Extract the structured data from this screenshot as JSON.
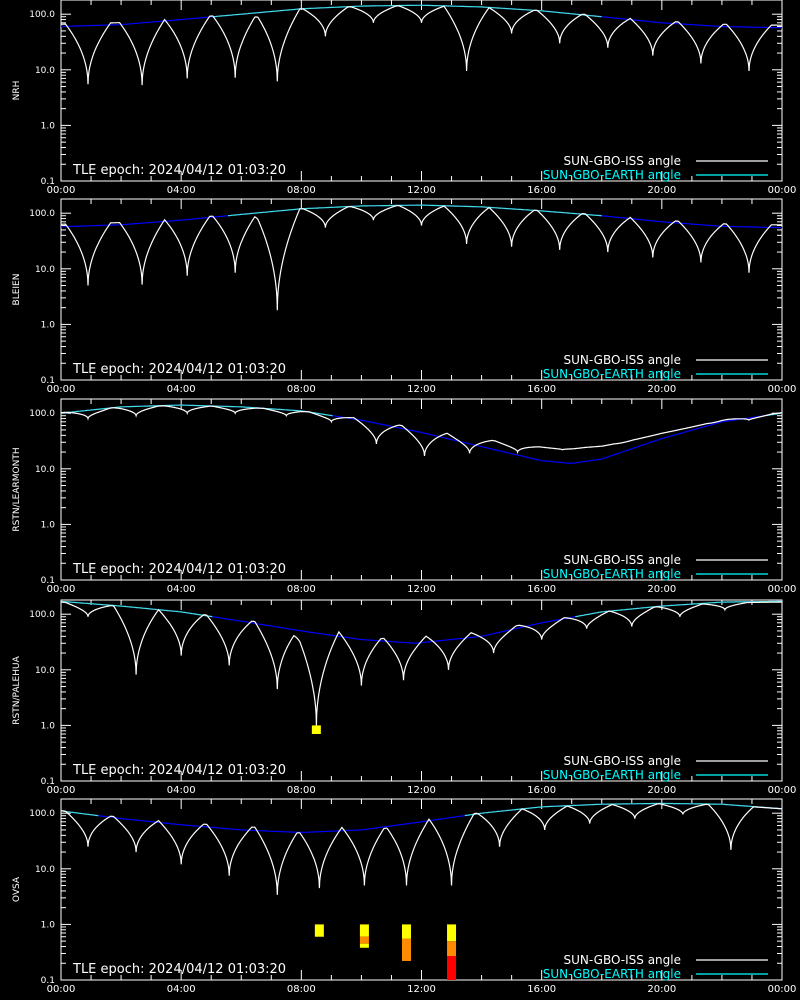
{
  "chart_data": {
    "type": "line",
    "epoch_text": "TLE epoch: 2024/04/12 01:03:20",
    "legend": [
      {
        "name": "SUN-GBO-ISS angle",
        "color": "#ffffff"
      },
      {
        "name": "SUN-GBO-EARTH angle",
        "color": "#00ffff"
      }
    ],
    "x_ticks": [
      "00:00",
      "04:00",
      "08:00",
      "12:00",
      "16:00",
      "20:00",
      "00:00"
    ],
    "x_range_hours": [
      0,
      24
    ],
    "y_scale": "log",
    "y_ticks": [
      "100.0",
      "10.0",
      "1.0",
      "0.1"
    ],
    "y_range": [
      0.1,
      180
    ],
    "earth_day_color": "#40e0d0",
    "earth_night_color": "#0000ff",
    "panels": [
      {
        "station": "NRH",
        "earth": [
          [
            0,
            60
          ],
          [
            2,
            65
          ],
          [
            4,
            80
          ],
          [
            6,
            100
          ],
          [
            8,
            125
          ],
          [
            10,
            140
          ],
          [
            12,
            145
          ],
          [
            14,
            135
          ],
          [
            16,
            115
          ],
          [
            18,
            90
          ],
          [
            20,
            70
          ],
          [
            22,
            60
          ],
          [
            24,
            57
          ]
        ],
        "iss_dips": [
          [
            0.9,
            5.5
          ],
          [
            2.7,
            5.3
          ],
          [
            4.2,
            7
          ],
          [
            5.8,
            7.2
          ],
          [
            7.2,
            6.2
          ],
          [
            8.8,
            40
          ],
          [
            10.4,
            70
          ],
          [
            12.0,
            70
          ],
          [
            13.5,
            9.5
          ],
          [
            15.0,
            45
          ],
          [
            16.6,
            30
          ],
          [
            18.2,
            25
          ],
          [
            19.7,
            18
          ],
          [
            21.3,
            13
          ],
          [
            22.9,
            9.5
          ]
        ],
        "markers": []
      },
      {
        "station": "BLEIEN",
        "earth": [
          [
            0,
            57
          ],
          [
            2,
            62
          ],
          [
            4,
            75
          ],
          [
            6,
            95
          ],
          [
            8,
            120
          ],
          [
            10,
            135
          ],
          [
            12,
            140
          ],
          [
            14,
            130
          ],
          [
            16,
            110
          ],
          [
            18,
            90
          ],
          [
            20,
            70
          ],
          [
            22,
            58
          ],
          [
            24,
            55
          ]
        ],
        "iss_dips": [
          [
            0.9,
            5
          ],
          [
            2.7,
            5.2
          ],
          [
            4.2,
            7.5
          ],
          [
            5.8,
            8.5
          ],
          [
            7.2,
            1.8
          ],
          [
            8.8,
            55
          ],
          [
            10.4,
            75
          ],
          [
            12.0,
            60
          ],
          [
            13.5,
            28
          ],
          [
            15.0,
            25
          ],
          [
            16.6,
            22
          ],
          [
            18.2,
            20
          ],
          [
            19.7,
            16
          ],
          [
            21.3,
            13
          ],
          [
            22.9,
            8.5
          ]
        ],
        "markers": []
      },
      {
        "station": "RSTN/LEARMONTH",
        "earth": [
          [
            0,
            100
          ],
          [
            2,
            130
          ],
          [
            4,
            140
          ],
          [
            6,
            130
          ],
          [
            8,
            110
          ],
          [
            10,
            75
          ],
          [
            12,
            45
          ],
          [
            14,
            25
          ],
          [
            16,
            14
          ],
          [
            17,
            12.5
          ],
          [
            18,
            15
          ],
          [
            20,
            35
          ],
          [
            22,
            70
          ],
          [
            24,
            100
          ]
        ],
        "iss_dips": [
          [
            0.9,
            80
          ],
          [
            2.5,
            90
          ],
          [
            4.2,
            100
          ],
          [
            5.8,
            100
          ],
          [
            7.5,
            90
          ],
          [
            9.0,
            70
          ],
          [
            10.5,
            28
          ],
          [
            12.1,
            17
          ],
          [
            13.6,
            19
          ],
          [
            15.2,
            20
          ],
          [
            16.7,
            22
          ],
          [
            18.3,
            28
          ],
          [
            19.8,
            50
          ],
          [
            21.4,
            65
          ],
          [
            22.9,
            75
          ]
        ],
        "markers": []
      },
      {
        "station": "RSTN/PALEHUA",
        "earth": [
          [
            0,
            170
          ],
          [
            2,
            140
          ],
          [
            4,
            110
          ],
          [
            6,
            75
          ],
          [
            8,
            50
          ],
          [
            10,
            35
          ],
          [
            11.8,
            30
          ],
          [
            14,
            40
          ],
          [
            16,
            70
          ],
          [
            18,
            110
          ],
          [
            20,
            140
          ],
          [
            22,
            165
          ],
          [
            24,
            170
          ]
        ],
        "iss_dips": [
          [
            0.9,
            90
          ],
          [
            2.5,
            8.2
          ],
          [
            4.0,
            18
          ],
          [
            5.6,
            12
          ],
          [
            7.2,
            4.5
          ],
          [
            8.5,
            1.0
          ],
          [
            10.0,
            5.2
          ],
          [
            11.4,
            6.5
          ],
          [
            12.9,
            10
          ],
          [
            14.4,
            20
          ],
          [
            16.0,
            35
          ],
          [
            17.5,
            55
          ],
          [
            19.0,
            60
          ],
          [
            20.6,
            90
          ],
          [
            22.1,
            120
          ]
        ],
        "markers": [
          {
            "hour": 8.5,
            "segments": [
              [
                0.7,
                1.0,
                "#ffff00"
              ]
            ]
          }
        ]
      },
      {
        "station": "OVSA",
        "earth": [
          [
            0,
            110
          ],
          [
            2,
            80
          ],
          [
            4,
            62
          ],
          [
            6,
            50
          ],
          [
            8,
            45
          ],
          [
            10,
            50
          ],
          [
            12,
            70
          ],
          [
            14,
            100
          ],
          [
            16,
            130
          ],
          [
            18,
            145
          ],
          [
            20,
            150
          ],
          [
            22,
            145
          ],
          [
            24,
            120
          ]
        ],
        "iss_dips": [
          [
            0.9,
            25
          ],
          [
            2.5,
            20
          ],
          [
            4.0,
            12
          ],
          [
            5.6,
            7.5
          ],
          [
            7.2,
            3.4
          ],
          [
            8.6,
            4.5
          ],
          [
            10.1,
            5.0
          ],
          [
            11.5,
            5.0
          ],
          [
            13.0,
            5.0
          ],
          [
            14.6,
            25
          ],
          [
            16.1,
            50
          ],
          [
            17.6,
            65
          ],
          [
            19.1,
            80
          ],
          [
            20.7,
            95
          ],
          [
            22.3,
            22
          ]
        ],
        "markers": [
          {
            "hour": 8.6,
            "segments": [
              [
                0.6,
                1.0,
                "#ffff00"
              ]
            ]
          },
          {
            "hour": 10.1,
            "segments": [
              [
                0.6,
                1.0,
                "#ffff00"
              ],
              [
                0.45,
                0.6,
                "#ff8c00"
              ],
              [
                0.38,
                0.45,
                "#ffff00"
              ]
            ]
          },
          {
            "hour": 11.5,
            "segments": [
              [
                0.55,
                1.0,
                "#ffff00"
              ],
              [
                0.22,
                0.55,
                "#ff8c00"
              ]
            ]
          },
          {
            "hour": 13.0,
            "segments": [
              [
                0.5,
                1.0,
                "#ffff00"
              ],
              [
                0.27,
                0.5,
                "#ff8c00"
              ],
              [
                0.1,
                0.27,
                "#ff0000"
              ]
            ]
          }
        ]
      }
    ]
  }
}
